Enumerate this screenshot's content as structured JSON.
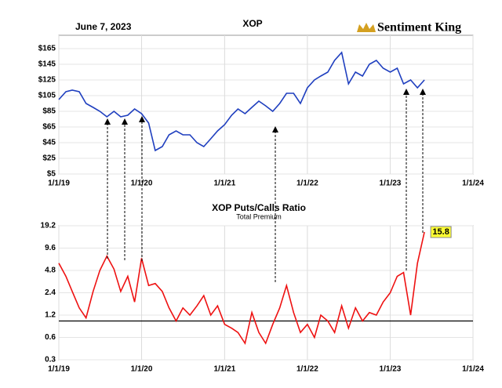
{
  "header": {
    "date": "June 7, 2023",
    "brand": "Sentiment King"
  },
  "chart_data": [
    {
      "type": "line",
      "title": "XOP",
      "x": [
        "2019-01-01",
        "2019-02-01",
        "2019-03-01",
        "2019-04-01",
        "2019-05-01",
        "2019-06-01",
        "2019-07-01",
        "2019-08-01",
        "2019-09-01",
        "2019-10-01",
        "2019-11-01",
        "2019-12-01",
        "2020-01-01",
        "2020-02-01",
        "2020-03-01",
        "2020-04-01",
        "2020-05-01",
        "2020-06-01",
        "2020-07-01",
        "2020-08-01",
        "2020-09-01",
        "2020-10-01",
        "2020-11-01",
        "2020-12-01",
        "2021-01-01",
        "2021-02-01",
        "2021-03-01",
        "2021-04-01",
        "2021-05-01",
        "2021-06-01",
        "2021-07-01",
        "2021-08-01",
        "2021-09-01",
        "2021-10-01",
        "2021-11-01",
        "2021-12-01",
        "2022-01-01",
        "2022-02-01",
        "2022-03-01",
        "2022-04-01",
        "2022-05-01",
        "2022-06-01",
        "2022-07-01",
        "2022-08-01",
        "2022-09-01",
        "2022-10-01",
        "2022-11-01",
        "2022-12-01",
        "2023-01-01",
        "2023-02-01",
        "2023-03-01",
        "2023-04-01",
        "2023-05-01",
        "2023-06-01"
      ],
      "series": [
        {
          "name": "XOP",
          "color": "#1f3fbf",
          "values": [
            100,
            110,
            112,
            110,
            95,
            90,
            85,
            78,
            85,
            78,
            80,
            88,
            82,
            70,
            35,
            40,
            55,
            60,
            55,
            55,
            45,
            40,
            50,
            60,
            68,
            80,
            88,
            82,
            90,
            98,
            92,
            85,
            95,
            108,
            108,
            95,
            115,
            125,
            130,
            135,
            150,
            160,
            120,
            135,
            130,
            145,
            150,
            140,
            135,
            140,
            120,
            125,
            115,
            125
          ]
        }
      ],
      "xlim": [
        "2019-01-01",
        "2024-01-01"
      ],
      "xticks": [
        {
          "value": "2019-01-01",
          "label": "1/1/19"
        },
        {
          "value": "2020-01-01",
          "label": "1/1/20"
        },
        {
          "value": "2021-01-01",
          "label": "1/1/21"
        },
        {
          "value": "2022-01-01",
          "label": "1/1/22"
        },
        {
          "value": "2023-01-01",
          "label": "1/1/23"
        },
        {
          "value": "2024-01-01",
          "label": "1/1/24"
        }
      ],
      "ylim": [
        5,
        182
      ],
      "yticks": [
        {
          "value": 5,
          "label": "$5"
        },
        {
          "value": 25,
          "label": "$25"
        },
        {
          "value": 45,
          "label": "$45"
        },
        {
          "value": 65,
          "label": "$65"
        },
        {
          "value": 85,
          "label": "$85"
        },
        {
          "value": 105,
          "label": "$105"
        },
        {
          "value": 125,
          "label": "$125"
        },
        {
          "value": 145,
          "label": "$145"
        },
        {
          "value": 165,
          "label": "$165"
        }
      ],
      "grid": true,
      "log_scale": false
    },
    {
      "type": "line",
      "title": "XOP Puts/Calls Ratio",
      "subtitle": "Total Premium",
      "x": [
        "2019-01-01",
        "2019-02-01",
        "2019-03-01",
        "2019-04-01",
        "2019-05-01",
        "2019-06-01",
        "2019-07-01",
        "2019-08-01",
        "2019-09-01",
        "2019-10-01",
        "2019-11-01",
        "2019-12-01",
        "2020-01-01",
        "2020-02-01",
        "2020-03-01",
        "2020-04-01",
        "2020-05-01",
        "2020-06-01",
        "2020-07-01",
        "2020-08-01",
        "2020-09-01",
        "2020-10-01",
        "2020-11-01",
        "2020-12-01",
        "2021-01-01",
        "2021-02-01",
        "2021-03-01",
        "2021-04-01",
        "2021-05-01",
        "2021-06-01",
        "2021-07-01",
        "2021-08-01",
        "2021-09-01",
        "2021-10-01",
        "2021-11-01",
        "2021-12-01",
        "2022-01-01",
        "2022-02-01",
        "2022-03-01",
        "2022-04-01",
        "2022-05-01",
        "2022-06-01",
        "2022-07-01",
        "2022-08-01",
        "2022-09-01",
        "2022-10-01",
        "2022-11-01",
        "2022-12-01",
        "2023-01-01",
        "2023-02-01",
        "2023-03-01",
        "2023-04-01",
        "2023-05-01",
        "2023-06-01"
      ],
      "series": [
        {
          "name": "XOP Puts/Calls Ratio",
          "color": "#ee1111",
          "values": [
            6,
            4,
            2.5,
            1.5,
            1.1,
            2.5,
            4.8,
            7.5,
            5,
            2.5,
            4,
            1.8,
            7,
            3,
            3.2,
            2.5,
            1.5,
            1,
            1.5,
            1.2,
            1.6,
            2.2,
            1.2,
            1.6,
            0.9,
            0.8,
            0.7,
            0.5,
            1.3,
            0.7,
            0.5,
            0.9,
            1.5,
            3,
            1.3,
            0.7,
            0.9,
            0.6,
            1.2,
            1,
            0.7,
            1.6,
            0.8,
            1.5,
            1,
            1.3,
            1.2,
            1.8,
            2.4,
            4,
            4.5,
            1.2,
            6,
            15.8
          ],
          "value_labels": [
            null,
            null,
            null,
            null,
            null,
            null,
            null,
            null,
            null,
            null,
            null,
            null,
            null,
            null,
            null,
            null,
            null,
            null,
            null,
            null,
            null,
            null,
            null,
            null,
            null,
            null,
            null,
            null,
            null,
            null,
            null,
            null,
            null,
            null,
            null,
            null,
            null,
            null,
            null,
            null,
            null,
            null,
            null,
            null,
            null,
            null,
            null,
            null,
            null,
            null,
            null,
            null,
            null,
            "15.8"
          ]
        }
      ],
      "xlim": [
        "2019-01-01",
        "2024-01-01"
      ],
      "xticks": [
        {
          "value": "2019-01-01",
          "label": "1/1/19"
        },
        {
          "value": "2020-01-01",
          "label": "1/1/20"
        },
        {
          "value": "2021-01-01",
          "label": "1/1/21"
        },
        {
          "value": "2022-01-01",
          "label": "1/1/22"
        },
        {
          "value": "2023-01-01",
          "label": "1/1/23"
        },
        {
          "value": "2024-01-01",
          "label": "1/1/24"
        }
      ],
      "ylim": [
        0.3,
        19.2
      ],
      "yticks": [
        0.3,
        0.6,
        1.2,
        2.4,
        4.8,
        9.6,
        19.2
      ],
      "reference_line": 1,
      "grid": true,
      "log_scale": true
    }
  ]
}
